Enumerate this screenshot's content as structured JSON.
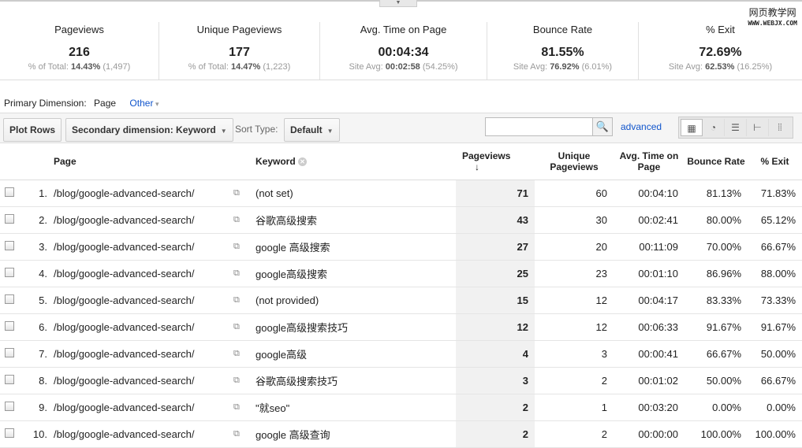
{
  "watermark": {
    "line1": "网页教学网",
    "line2": "WWW.WEBJX.COM"
  },
  "summary": [
    {
      "title": "Pageviews",
      "value": "216",
      "sub_label": "% of Total:",
      "sub_bold": "14.43%",
      "sub_extra": "(1,497)"
    },
    {
      "title": "Unique Pageviews",
      "value": "177",
      "sub_label": "% of Total:",
      "sub_bold": "14.47%",
      "sub_extra": "(1,223)"
    },
    {
      "title": "Avg. Time on Page",
      "value": "00:04:34",
      "sub_label": "Site Avg:",
      "sub_bold": "00:02:58",
      "sub_extra": "(54.25%)"
    },
    {
      "title": "Bounce Rate",
      "value": "81.55%",
      "sub_label": "Site Avg:",
      "sub_bold": "76.92%",
      "sub_extra": "(6.01%)"
    },
    {
      "title": "% Exit",
      "value": "72.69%",
      "sub_label": "Site Avg:",
      "sub_bold": "62.53%",
      "sub_extra": "(16.25%)"
    }
  ],
  "primary_dimension": {
    "label": "Primary Dimension:",
    "current": "Page",
    "other": "Other"
  },
  "toolbar": {
    "plot_rows": "Plot Rows",
    "secondary": "Secondary dimension: Keyword",
    "sort_label": "Sort Type:",
    "sort_value": "Default",
    "search_placeholder": "",
    "advanced": "advanced"
  },
  "columns": {
    "page": "Page",
    "keyword": "Keyword",
    "pageviews": "Pageviews",
    "unique": "Unique Pageviews",
    "avg_time": "Avg. Time on Page",
    "bounce": "Bounce Rate",
    "exit": "% Exit"
  },
  "rows": [
    {
      "n": "1.",
      "page": "/blog/google-advanced-search/",
      "kw": "(not set)",
      "pv": "71",
      "upv": "60",
      "time": "00:04:10",
      "bounce": "81.13%",
      "exit": "71.83%"
    },
    {
      "n": "2.",
      "page": "/blog/google-advanced-search/",
      "kw": "谷歌高级搜索",
      "pv": "43",
      "upv": "30",
      "time": "00:02:41",
      "bounce": "80.00%",
      "exit": "65.12%"
    },
    {
      "n": "3.",
      "page": "/blog/google-advanced-search/",
      "kw": "google 高级搜索",
      "pv": "27",
      "upv": "20",
      "time": "00:11:09",
      "bounce": "70.00%",
      "exit": "66.67%"
    },
    {
      "n": "4.",
      "page": "/blog/google-advanced-search/",
      "kw": "google高级搜索",
      "pv": "25",
      "upv": "23",
      "time": "00:01:10",
      "bounce": "86.96%",
      "exit": "88.00%"
    },
    {
      "n": "5.",
      "page": "/blog/google-advanced-search/",
      "kw": "(not provided)",
      "pv": "15",
      "upv": "12",
      "time": "00:04:17",
      "bounce": "83.33%",
      "exit": "73.33%"
    },
    {
      "n": "6.",
      "page": "/blog/google-advanced-search/",
      "kw": "google高级搜索技巧",
      "pv": "12",
      "upv": "12",
      "time": "00:06:33",
      "bounce": "91.67%",
      "exit": "91.67%"
    },
    {
      "n": "7.",
      "page": "/blog/google-advanced-search/",
      "kw": "google高级",
      "pv": "4",
      "upv": "3",
      "time": "00:00:41",
      "bounce": "66.67%",
      "exit": "50.00%"
    },
    {
      "n": "8.",
      "page": "/blog/google-advanced-search/",
      "kw": "谷歌高级搜索技巧",
      "pv": "3",
      "upv": "2",
      "time": "00:01:02",
      "bounce": "50.00%",
      "exit": "66.67%"
    },
    {
      "n": "9.",
      "page": "/blog/google-advanced-search/",
      "kw": "\"就seo\"",
      "pv": "2",
      "upv": "1",
      "time": "00:03:20",
      "bounce": "0.00%",
      "exit": "0.00%"
    },
    {
      "n": "10.",
      "page": "/blog/google-advanced-search/",
      "kw": "google 高级查询",
      "pv": "2",
      "upv": "2",
      "time": "00:00:00",
      "bounce": "100.00%",
      "exit": "100.00%"
    }
  ]
}
